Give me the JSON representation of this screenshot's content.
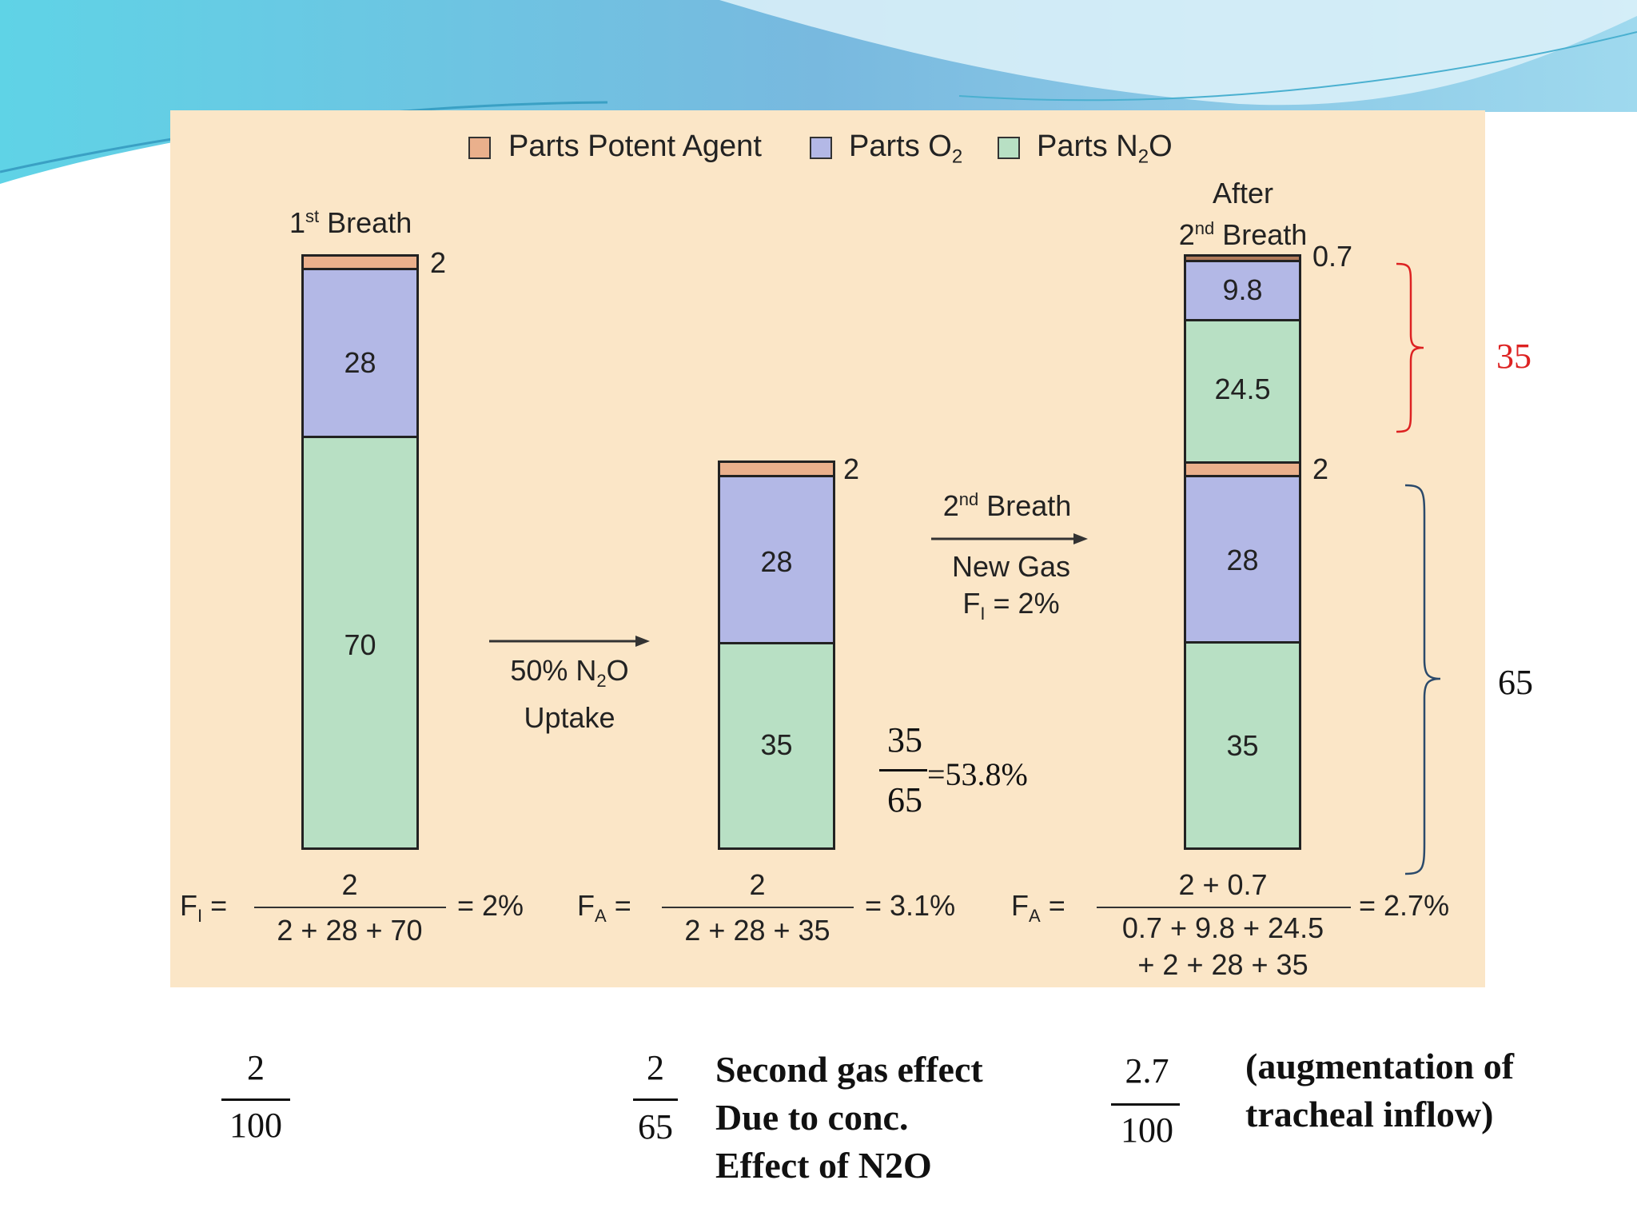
{
  "legend": {
    "agent": "Parts Potent Agent",
    "o2": "Parts O",
    "o2_sub": "2",
    "n2o": "Parts N",
    "n2o_sub": "2",
    "n2o_tail": "O"
  },
  "columns": {
    "first": {
      "title": "1",
      "title_sup": "st",
      "title_tail": " Breath",
      "agent": "2",
      "o2": "28",
      "n2o": "70"
    },
    "second": {
      "agent": "2",
      "o2": "28",
      "n2o": "35"
    },
    "third": {
      "title_line1": "After",
      "title_line2_a": "2",
      "title_line2_sup": "nd",
      "title_line2_b": " Breath",
      "agent_top": "0.7",
      "o2_top": "9.8",
      "n2o_top": "24.5",
      "agent": "2",
      "o2": "28",
      "n2o": "35"
    }
  },
  "arrows": {
    "uptake_line1_a": "50% N",
    "uptake_line1_sub": "2",
    "uptake_line1_b": "O",
    "uptake_line2": "Uptake",
    "breath_a": "2",
    "breath_sup": "nd",
    "breath_b": " Breath",
    "newgas": "New Gas",
    "fi_a": "F",
    "fi_sub": "I",
    "fi_b": " = 2%"
  },
  "formulas": {
    "f1_label": "F",
    "f1_sub": "I",
    "f1_eq": "=",
    "f1_num": "2",
    "f1_den": "2 + 28 + 70",
    "f1_res": "= 2%",
    "f2_label": "F",
    "f2_sub": "A",
    "f2_eq": "=",
    "f2_num": "2",
    "f2_den": "2 + 28 + 35",
    "f2_res": "= 3.1%",
    "f3_label": "F",
    "f3_sub": "A",
    "f3_eq": "=",
    "f3_num": "2 + 0.7",
    "f3_den1": "0.7 + 9.8 + 24.5",
    "f3_den2": "+ 2 + 28 + 35",
    "f3_res": "= 2.7%"
  },
  "annotations": {
    "ratio_num": "35",
    "ratio_den": "65",
    "ratio_res": "=53.8%",
    "brace_red": "35",
    "brace_blue": "65",
    "red_color": "#dd2222",
    "blue_color": "#2b4a6b"
  },
  "bottom": {
    "frac1_num": "2",
    "frac1_den": "100",
    "frac2_num": "2",
    "frac2_den": "65",
    "note1": "Second gas effect",
    "note2": "Due to conc.",
    "note3": "Effect of N2O",
    "frac3_num": "2.7",
    "frac3_den": "100",
    "note4": "(augmentation of",
    "note5": "tracheal inflow)"
  }
}
